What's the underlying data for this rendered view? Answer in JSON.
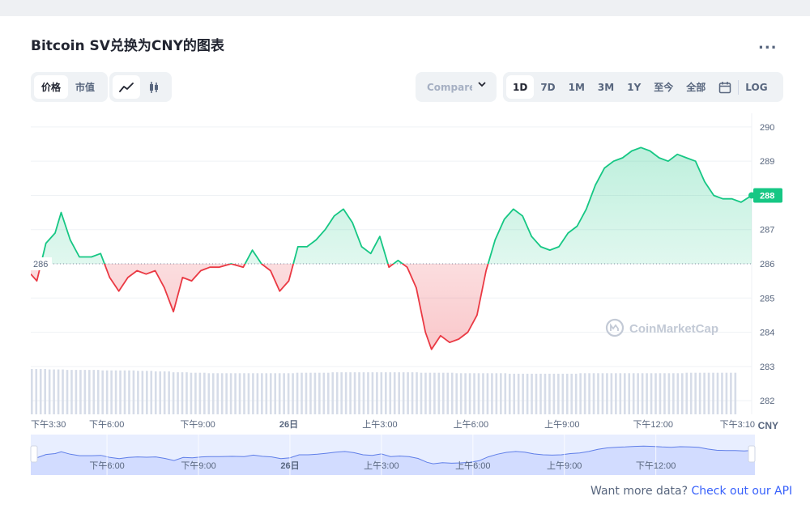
{
  "title": "Bitcoin SV兑换为CNY的图表",
  "more_label": "...",
  "view_tabs": [
    {
      "label": "价格",
      "active": true
    },
    {
      "label": "市值",
      "active": false
    }
  ],
  "chart_style_icons": [
    "line-chart-icon",
    "candlestick-icon"
  ],
  "compare_label": "Compare with",
  "range_tabs": [
    {
      "label": "1D",
      "active": true
    },
    {
      "label": "7D",
      "active": false
    },
    {
      "label": "1M",
      "active": false
    },
    {
      "label": "3M",
      "active": false
    },
    {
      "label": "1Y",
      "active": false
    },
    {
      "label": "至今",
      "active": false
    },
    {
      "label": "全部",
      "active": false
    }
  ],
  "log_label": "LOG",
  "watermark": "CoinMarketCap",
  "footer": {
    "text": "Want more data?",
    "link": "Check out our API"
  },
  "colors": {
    "up": "#16c784",
    "down": "#ea3943",
    "accent": "#3861fb",
    "navigator": "#d6deff"
  },
  "chart_data": {
    "type": "line",
    "currency_label": "CNY",
    "baseline": 286,
    "baseline_label": "286",
    "current_price_label": "288",
    "ylim": [
      281.6,
      290.4
    ],
    "yticks": [
      290,
      289,
      288,
      287,
      286,
      285,
      284,
      283,
      282
    ],
    "xlim": [
      0,
      23.75
    ],
    "x_ticks": [
      {
        "t": 0,
        "label": "下午3:30"
      },
      {
        "t": 2.5,
        "label": "下午6:00"
      },
      {
        "t": 5.5,
        "label": "下午9:00"
      },
      {
        "t": 8.5,
        "label": "26日"
      },
      {
        "t": 11.5,
        "label": "上午3:00"
      },
      {
        "t": 14.5,
        "label": "上午6:00"
      },
      {
        "t": 17.5,
        "label": "上午9:00"
      },
      {
        "t": 20.5,
        "label": "下午12:00"
      },
      {
        "t": 23.5,
        "label": "下午3:10"
      }
    ],
    "navigator_ticks": [
      {
        "t": 2.5,
        "label": "下午6:00"
      },
      {
        "t": 5.5,
        "label": "下午9:00"
      },
      {
        "t": 8.5,
        "label": "26日"
      },
      {
        "t": 11.5,
        "label": "上午3:00"
      },
      {
        "t": 14.5,
        "label": "上午6:00"
      },
      {
        "t": 17.5,
        "label": "上午9:00"
      },
      {
        "t": 20.5,
        "label": "下午12:00"
      }
    ],
    "series": [
      {
        "x": [
          0,
          0.2,
          0.5,
          0.8,
          1.0,
          1.3,
          1.6,
          2.0,
          2.3,
          2.6,
          2.9,
          3.2,
          3.5,
          3.8,
          4.1,
          4.4,
          4.7,
          5.0,
          5.3,
          5.6,
          5.9,
          6.2,
          6.6,
          7.0,
          7.3,
          7.6,
          7.9,
          8.2,
          8.5,
          8.8,
          9.1,
          9.4,
          9.7,
          10.0,
          10.3,
          10.6,
          10.9,
          11.2,
          11.5,
          11.8,
          12.1,
          12.4,
          12.7,
          13.0,
          13.2,
          13.5,
          13.8,
          14.1,
          14.4,
          14.7,
          15.0,
          15.3,
          15.6,
          15.9,
          16.2,
          16.5,
          16.8,
          17.1,
          17.4,
          17.7,
          18.0,
          18.3,
          18.6,
          18.9,
          19.2,
          19.5,
          19.8,
          20.1,
          20.4,
          20.7,
          21.0,
          21.3,
          21.6,
          21.9,
          22.2,
          22.5,
          22.8,
          23.1,
          23.4,
          23.75
        ],
        "values": [
          285.7,
          285.5,
          286.6,
          286.9,
          287.5,
          286.7,
          286.2,
          286.2,
          286.3,
          285.6,
          285.2,
          285.6,
          285.8,
          285.7,
          285.8,
          285.3,
          284.6,
          285.6,
          285.5,
          285.8,
          285.9,
          285.9,
          286.0,
          285.9,
          286.4,
          286.0,
          285.8,
          285.2,
          285.5,
          286.5,
          286.5,
          286.7,
          287.0,
          287.4,
          287.6,
          287.2,
          286.5,
          286.3,
          286.8,
          285.9,
          286.1,
          285.9,
          285.3,
          284.0,
          283.5,
          283.9,
          283.7,
          283.8,
          284.0,
          284.5,
          285.8,
          286.7,
          287.3,
          287.6,
          287.4,
          286.8,
          286.5,
          286.4,
          286.5,
          286.9,
          287.1,
          287.6,
          288.3,
          288.8,
          289.0,
          289.1,
          289.3,
          289.4,
          289.3,
          289.1,
          289.0,
          289.2,
          289.1,
          289.0,
          288.4,
          288.0,
          287.9,
          287.9,
          287.8,
          288.0
        ]
      }
    ],
    "volume_levels": [
      0.95,
      0.94,
      0.93,
      0.93,
      0.92,
      0.92,
      0.91,
      0.9,
      0.88,
      0.87,
      0.86,
      0.86,
      0.86,
      0.86,
      0.86,
      0.87,
      0.87,
      0.88,
      0.88,
      0.88,
      0.88,
      0.88,
      0.87,
      0.87,
      0.86,
      0.86,
      0.86,
      0.85,
      0.85,
      0.85,
      0.85,
      0.86,
      0.86,
      0.86,
      0.86,
      0.86,
      0.86,
      0.87,
      0.87,
      0.87
    ]
  }
}
